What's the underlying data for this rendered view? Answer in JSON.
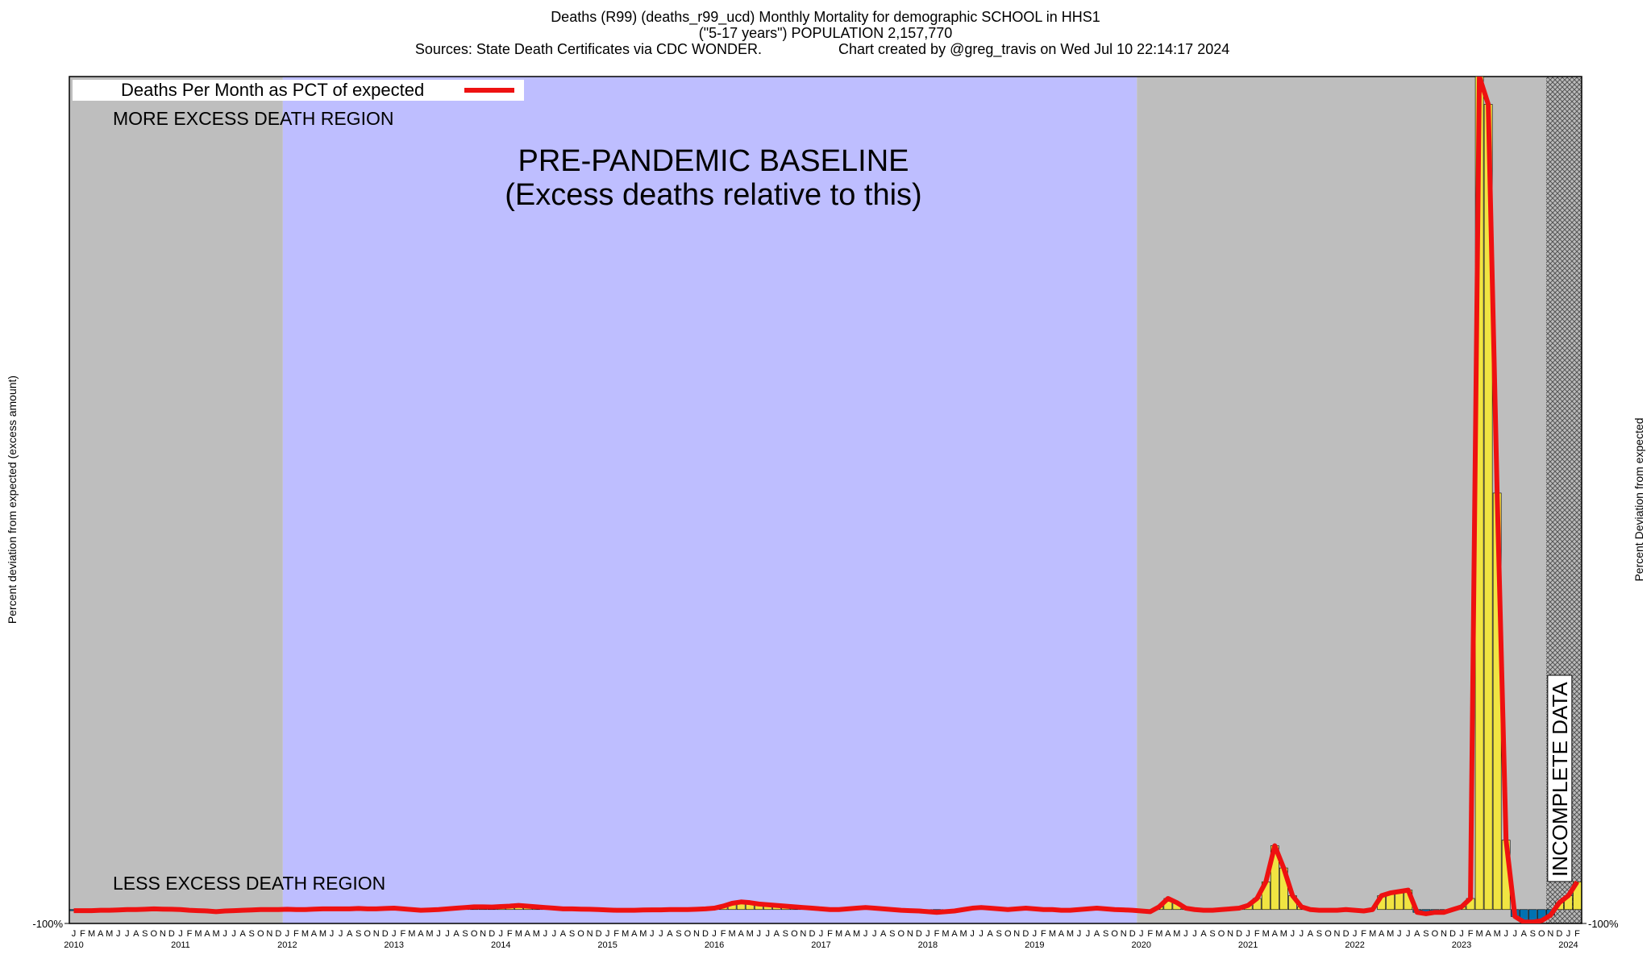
{
  "chart_data": {
    "type": "bar",
    "title": "Deaths (R99) (deaths_r99_ucd) Monthly Mortality for demographic SCHOOL in HHS1",
    "subtitle": "(\"5-17 years\") POPULATION 2,157,770",
    "source": "Sources: State Death Certificates via CDC WONDER.",
    "credit": "Chart created by @greg_travis on Wed Jul 10 22:14:17 2024",
    "y_label": "Percent deviation from expected (excess amount)",
    "y2_label": "Percent Deviation from expected",
    "categories": [
      "J",
      "F",
      "M",
      "A",
      "M",
      "J",
      "J",
      "A",
      "S",
      "O",
      "N",
      "D",
      "J",
      "F",
      "M",
      "A",
      "M",
      "J",
      "J",
      "A",
      "S",
      "O",
      "N",
      "D",
      "J",
      "F",
      "M",
      "A",
      "M",
      "J",
      "J",
      "A",
      "S",
      "O",
      "N",
      "D",
      "J",
      "F",
      "M",
      "A",
      "M",
      "J",
      "J",
      "A",
      "S",
      "O",
      "N",
      "D",
      "J",
      "F",
      "M",
      "A",
      "M",
      "J",
      "J",
      "A",
      "S",
      "O",
      "N",
      "D",
      "J",
      "F",
      "M",
      "A",
      "M",
      "J",
      "J",
      "A",
      "S",
      "O",
      "N",
      "D",
      "J",
      "F",
      "M",
      "A",
      "M",
      "J",
      "J",
      "A",
      "S",
      "O",
      "N",
      "D",
      "J",
      "F",
      "M",
      "A",
      "M",
      "J",
      "J",
      "A",
      "S",
      "O",
      "N",
      "D",
      "J",
      "F",
      "M",
      "A",
      "M",
      "J",
      "J",
      "A",
      "S",
      "O",
      "N",
      "D",
      "J",
      "F",
      "M",
      "A",
      "M",
      "J",
      "J",
      "A",
      "S",
      "O",
      "N",
      "D",
      "J",
      "F",
      "M",
      "A",
      "M",
      "J",
      "J",
      "A",
      "S",
      "O",
      "N",
      "D",
      "J",
      "F",
      "M",
      "A",
      "M",
      "J",
      "J",
      "A",
      "S",
      "O",
      "N",
      "D",
      "J",
      "F",
      "M",
      "A",
      "M",
      "J",
      "J",
      "A",
      "S",
      "O",
      "N",
      "D",
      "J",
      "F",
      "M",
      "A",
      "M",
      "J",
      "J",
      "A",
      "S",
      "O",
      "N",
      "D",
      "J",
      "F"
    ],
    "years": [
      "2010",
      "2011",
      "2012",
      "2013",
      "2014",
      "2015",
      "2016",
      "2017",
      "2018",
      "2019",
      "2020",
      "2021",
      "2022",
      "2023",
      "2024"
    ],
    "series": [
      {
        "name": "Deaths Per Month as PCT of expected",
        "color": "#ee1111",
        "values": [
          -8,
          -8,
          -8,
          -5,
          -5,
          -3,
          0,
          0,
          2,
          5,
          3,
          2,
          0,
          -5,
          -8,
          -10,
          -15,
          -10,
          -8,
          -5,
          -3,
          0,
          0,
          0,
          2,
          0,
          0,
          3,
          5,
          5,
          5,
          5,
          8,
          5,
          5,
          8,
          10,
          5,
          0,
          -5,
          -3,
          0,
          5,
          10,
          15,
          20,
          20,
          18,
          22,
          25,
          30,
          25,
          20,
          15,
          10,
          5,
          5,
          3,
          2,
          0,
          -3,
          -5,
          -5,
          -5,
          -3,
          -2,
          -2,
          0,
          0,
          0,
          2,
          5,
          10,
          25,
          45,
          55,
          50,
          40,
          35,
          30,
          25,
          20,
          15,
          10,
          5,
          0,
          0,
          5,
          10,
          15,
          10,
          5,
          0,
          -5,
          -8,
          -10,
          -15,
          -20,
          -15,
          -10,
          0,
          10,
          15,
          10,
          5,
          0,
          5,
          10,
          5,
          0,
          0,
          -5,
          -5,
          0,
          5,
          10,
          5,
          0,
          -2,
          -5,
          -10,
          -15,
          20,
          80,
          50,
          10,
          0,
          -5,
          -5,
          0,
          5,
          10,
          30,
          80,
          200,
          460,
          300,
          100,
          20,
          0,
          -5,
          -5,
          -5,
          0,
          -5,
          -10,
          0,
          100,
          120,
          130,
          140,
          -20,
          -30,
          -20,
          -20,
          0,
          20,
          80,
          6000,
          5800,
          3000,
          500,
          -50,
          -90,
          -90,
          -80,
          -40,
          50,
          100,
          200
        ]
      }
    ],
    "negative_color": "#0072b2",
    "positive_color": "#f0e442",
    "ylim": [
      -100,
      6000
    ],
    "yticks": [
      {
        "value": -100,
        "label": "-100%"
      }
    ],
    "regions": [
      {
        "from": 0,
        "to": 24,
        "color": "#bebebe"
      },
      {
        "from": 24,
        "to": 120,
        "color": "#bebeff"
      },
      {
        "from": 120,
        "to": 166,
        "color": "#bebebe"
      }
    ],
    "upper_label": "MORE EXCESS DEATH REGION",
    "lower_label": "LESS EXCESS DEATH REGION",
    "baseline_label": "PRE-PANDEMIC BASELINE",
    "baseline_sublabel": "(Excess deaths relative to this)",
    "incomplete_label": "INCOMPLETE DATA",
    "legend": "top-left"
  }
}
